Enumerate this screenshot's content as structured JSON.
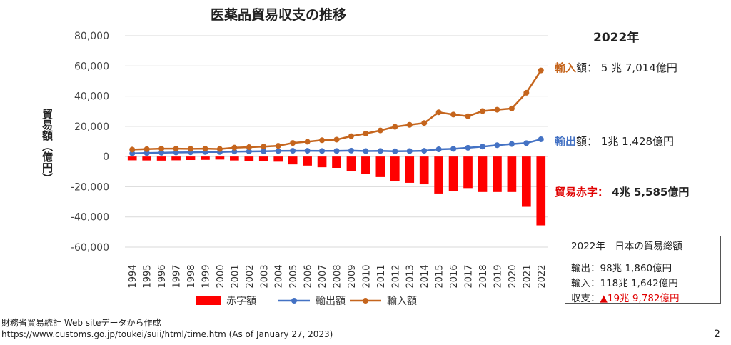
{
  "chart_data": {
    "type": "bar+line",
    "title": "医薬品貿易収支の推移",
    "ylabel": "貿易額（億円）",
    "ylim": [
      -60000,
      80000
    ],
    "yticks": [
      80000,
      60000,
      40000,
      20000,
      0,
      -20000,
      -40000,
      -60000
    ],
    "ytick_labels": [
      "80,000",
      "60,000",
      "40,000",
      "20,000",
      "0",
      "-20,000",
      "-40,000",
      "-60,000"
    ],
    "categories": [
      "1994",
      "1995",
      "1996",
      "1997",
      "1998",
      "1999",
      "2000",
      "2001",
      "2002",
      "2003",
      "2004",
      "2005",
      "2006",
      "2007",
      "2008",
      "2009",
      "2010",
      "2011",
      "2012",
      "2013",
      "2014",
      "2015",
      "2016",
      "2017",
      "2018",
      "2019",
      "2020",
      "2021",
      "2022"
    ],
    "series": [
      {
        "name": "赤字額",
        "kind": "bar",
        "color": "#ff0000",
        "values": [
          -2500,
          -2600,
          -2700,
          -2500,
          -2300,
          -2200,
          -2000,
          -2600,
          -2800,
          -3100,
          -3400,
          -5200,
          -6000,
          -7100,
          -7500,
          -9600,
          -11600,
          -13600,
          -16200,
          -17400,
          -18400,
          -24500,
          -22700,
          -20900,
          -23500,
          -23500,
          -23500,
          -33300,
          -45585
        ]
      },
      {
        "name": "輸出額",
        "kind": "line",
        "color": "#4472c4",
        "values": [
          2100,
          2300,
          2500,
          2700,
          2800,
          3000,
          3000,
          3300,
          3400,
          3500,
          3700,
          3800,
          3800,
          3700,
          3700,
          3900,
          3600,
          3700,
          3500,
          3600,
          3800,
          4800,
          5100,
          5800,
          6600,
          7500,
          8300,
          8900,
          11428
        ]
      },
      {
        "name": "輸入額",
        "kind": "line",
        "color": "#c5651d",
        "values": [
          4600,
          4900,
          5200,
          5200,
          5100,
          5200,
          5000,
          5900,
          6200,
          6600,
          7100,
          9000,
          9800,
          10800,
          11200,
          13500,
          15200,
          17300,
          19700,
          21000,
          22200,
          29300,
          27800,
          26700,
          30100,
          31000,
          31800,
          42200,
          57014
        ]
      }
    ],
    "legend_position": "bottom",
    "grid": true
  },
  "annotations": {
    "year_head": "2022年",
    "import": {
      "label": "輸入",
      "suffix": "額：",
      "value": " 5 兆 7,014億円",
      "color": "#c5651d"
    },
    "export": {
      "label": "輸出",
      "suffix": "額：",
      "value": " 1兆 1,428億円",
      "color": "#4472c4"
    },
    "deficit": {
      "label": "貿易赤字：",
      "value": " 4兆 5,585億円",
      "color": "#e00000"
    }
  },
  "totals_box": {
    "head": "2022年　日本の貿易総額",
    "export_label": "輸出：",
    "export_value": "98兆 1,860億円",
    "import_label": "輸入：",
    "import_value": "118兆 1,642億円",
    "balance_label": "収支：",
    "balance_value": "▲19兆 9,782億円"
  },
  "source": {
    "line1": "財務省貿易統計 Web siteデータから作成",
    "line2": "https://www.customs.go.jp/toukei/suii/html/time.htm (As of January 27, 2023)"
  },
  "page_number": "2"
}
